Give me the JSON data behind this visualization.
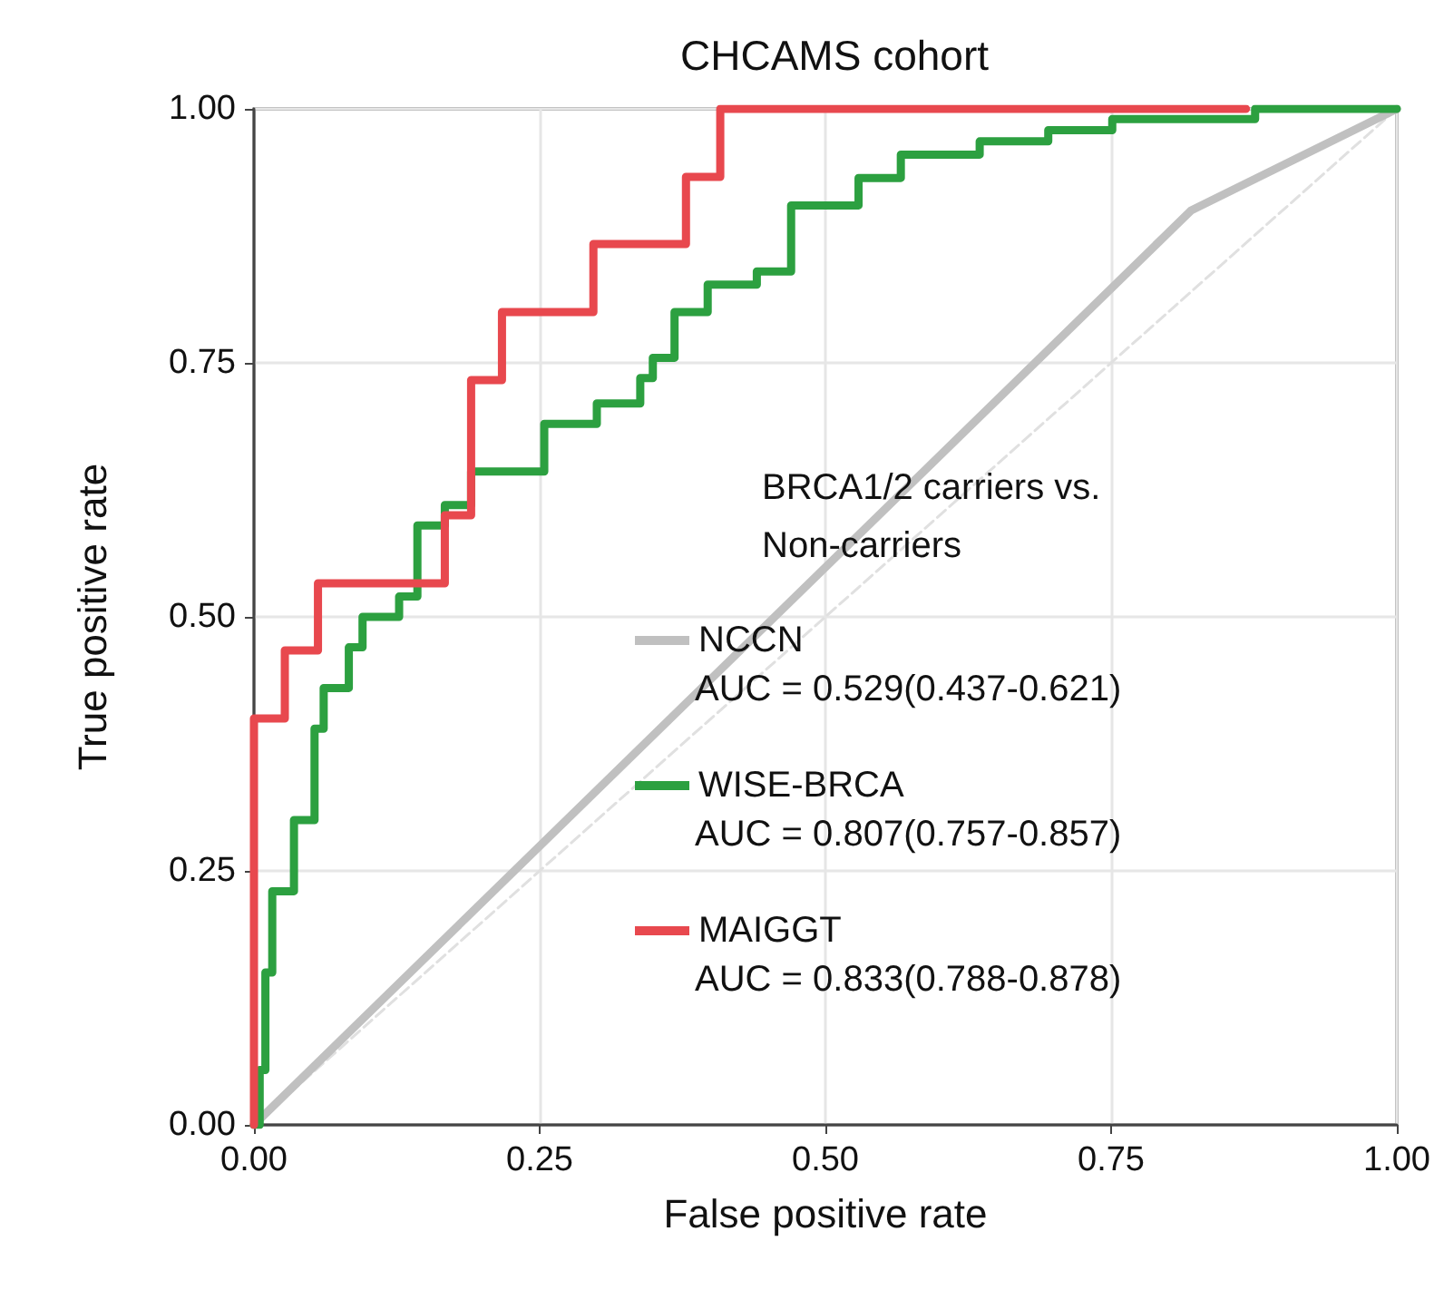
{
  "chart_data": {
    "type": "step",
    "title": "CHCAMS cohort",
    "xlabel": "False positive rate",
    "ylabel": "True positive rate",
    "legend_title": "BRCA1/2 carriers vs. Non-carriers",
    "xlim": [
      0,
      1
    ],
    "ylim": [
      0,
      1
    ],
    "xticks": [
      {
        "value": 0,
        "label": "0.00"
      },
      {
        "value": 0.25,
        "label": "0.25"
      },
      {
        "value": 0.5,
        "label": "0.50"
      },
      {
        "value": 0.75,
        "label": "0.75"
      },
      {
        "value": 1,
        "label": "1.00"
      }
    ],
    "yticks": [
      {
        "value": 0,
        "label": "0.00"
      },
      {
        "value": 0.25,
        "label": "0.25"
      },
      {
        "value": 0.5,
        "label": "0.50"
      },
      {
        "value": 0.75,
        "label": "0.75"
      },
      {
        "value": 1,
        "label": "1.00"
      }
    ],
    "grid": true,
    "legend": "bottom right",
    "marker": "none",
    "line_style": "solid",
    "annotations": [
      "AUC = 0.529(0.437-0.621)",
      "AUC = 0.807(0.757-0.857)",
      "AUC = 0.833(0.788-0.878)"
    ],
    "series": [
      {
        "type": "line",
        "color": "#e0e0e0",
        "line_style": "dashed",
        "x": [
          0,
          1
        ],
        "values": [
          0,
          1
        ]
      },
      {
        "name": "NCCN",
        "type": "line",
        "color": "#c0c0c0",
        "x": [
          0,
          0.82,
          1
        ],
        "values": [
          0,
          0.9,
          1
        ]
      },
      {
        "name": "WISE-BRCA",
        "color": "#2ca040",
        "x": [
          0,
          0.005,
          0.01,
          0.016,
          0.035,
          0.053,
          0.061,
          0.083,
          0.095,
          0.127,
          0.143,
          0.167,
          0.19,
          0.254,
          0.3,
          0.338,
          0.349,
          0.368,
          0.397,
          0.44,
          0.47,
          0.529,
          0.566,
          0.635,
          0.695,
          0.751,
          0.876,
          1
        ],
        "values": [
          0,
          0.054,
          0.15,
          0.23,
          0.3,
          0.39,
          0.43,
          0.47,
          0.5,
          0.52,
          0.59,
          0.61,
          0.643,
          0.69,
          0.71,
          0.735,
          0.755,
          0.8,
          0.827,
          0.84,
          0.905,
          0.932,
          0.955,
          0.968,
          0.979,
          0.99,
          1,
          1
        ]
      },
      {
        "name": "MAIGGT",
        "color": "#e8484e",
        "x": [
          0,
          0,
          0.027,
          0.056,
          0.167,
          0.19,
          0.217,
          0.297,
          0.378,
          0.408,
          0.868
        ],
        "values": [
          0,
          0.4,
          0.467,
          0.533,
          0.6,
          0.733,
          0.8,
          0.867,
          0.933,
          1,
          1
        ]
      }
    ]
  }
}
